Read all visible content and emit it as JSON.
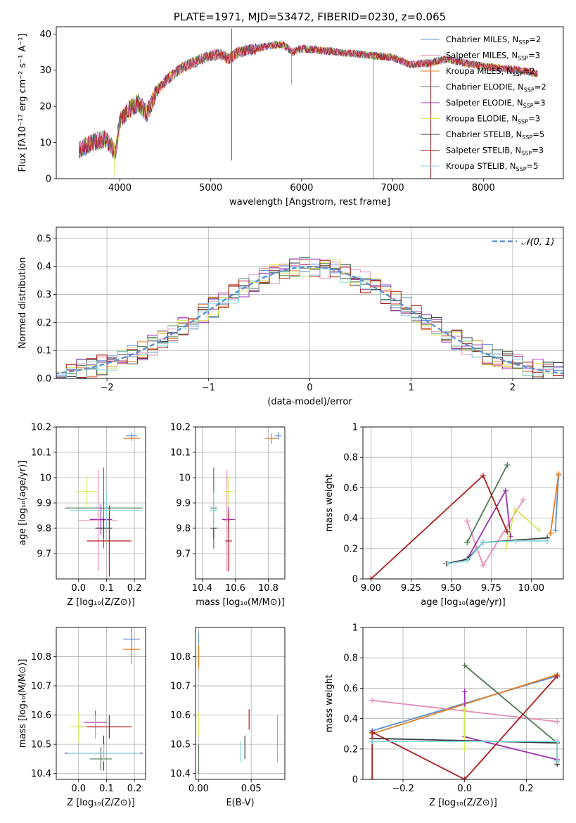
{
  "chart_data": [
    {
      "id": "spectrum",
      "type": "line",
      "title": "PLATE=1971, MJD=53472, FIBERID=0230, z=0.065",
      "xlabel": "wavelength [Angstrom, rest frame]",
      "ylabel": "Flux [fλ10⁻¹⁷ erg cm⁻² s⁻¹ A⁻¹]",
      "xlim": [
        3300,
        8880
      ],
      "ylim": [
        0,
        42
      ],
      "xticks": [
        4000,
        5000,
        6000,
        7000,
        8000
      ],
      "yticks": [
        0,
        10,
        20,
        30,
        40
      ],
      "grid": false,
      "legend_position": "top-right",
      "legend": [
        {
          "label": "Chabrier MILES, N",
          "sub": "SSP",
          "tail": "=2",
          "color": "#5b8fd6"
        },
        {
          "label": "Salpeter MILES, N",
          "sub": "SSP",
          "tail": "=3",
          "color": "#e88bb8"
        },
        {
          "label": "Kroupa MILES, N",
          "sub": "SSP",
          "tail": "=2",
          "color": "#e87d1e"
        },
        {
          "label": "Chabrier ELODIE, N",
          "sub": "SSP",
          "tail": "=2",
          "color": "#4f7a50"
        },
        {
          "label": "Salpeter ELODIE, N",
          "sub": "SSP",
          "tail": "=3",
          "color": "#9a32b0"
        },
        {
          "label": "Kroupa ELODIE, N",
          "sub": "SSP",
          "tail": "=3",
          "color": "#d8e85a"
        },
        {
          "label": "Chabrier STELIB, N",
          "sub": "SSP",
          "tail": "=5",
          "color": "#3a3a3a"
        },
        {
          "label": "Salpeter STELIB, N",
          "sub": "SSP",
          "tail": "=3",
          "color": "#b01c1c"
        },
        {
          "label": "Kroupa STELIB, N",
          "sub": "SSP",
          "tail": "=5",
          "color": "#7fd6de"
        }
      ],
      "continuum": [
        [
          3550,
          8
        ],
        [
          3700,
          10
        ],
        [
          3850,
          11
        ],
        [
          3950,
          7
        ],
        [
          4000,
          16
        ],
        [
          4100,
          19
        ],
        [
          4200,
          21
        ],
        [
          4300,
          18
        ],
        [
          4400,
          24
        ],
        [
          4500,
          27
        ],
        [
          4600,
          29
        ],
        [
          4700,
          31
        ],
        [
          4800,
          32
        ],
        [
          4900,
          33
        ],
        [
          5000,
          34
        ],
        [
          5100,
          34.5
        ],
        [
          5200,
          33
        ],
        [
          5300,
          35
        ],
        [
          5400,
          35.5
        ],
        [
          5500,
          36
        ],
        [
          5600,
          36.5
        ],
        [
          5700,
          37
        ],
        [
          5800,
          37
        ],
        [
          5900,
          35
        ],
        [
          6000,
          36
        ],
        [
          6200,
          35.5
        ],
        [
          6400,
          35
        ],
        [
          6600,
          34.5
        ],
        [
          6800,
          34
        ],
        [
          7000,
          33.5
        ],
        [
          7200,
          31.5
        ],
        [
          7400,
          32
        ],
        [
          7600,
          33
        ],
        [
          7800,
          32
        ],
        [
          8000,
          31
        ],
        [
          8200,
          30.5
        ],
        [
          8400,
          30
        ],
        [
          8600,
          29
        ]
      ],
      "spikes": [
        {
          "x": 5230,
          "low": 5.0,
          "high": 41.5,
          "color": "#555555"
        },
        {
          "x": 5890,
          "low": 26.0,
          "high": 35.0,
          "color": "#e87d1e"
        },
        {
          "x": 6790,
          "low": 0.0,
          "high": 34.0,
          "color": "#e87d1e"
        },
        {
          "x": 7420,
          "low": 0.0,
          "high": 32.0,
          "color": "#b01c1c"
        },
        {
          "x": 3940,
          "low": 1.0,
          "high": 10.0,
          "color": "#d8e85a"
        }
      ]
    },
    {
      "id": "residuals",
      "type": "histogram",
      "xlabel": "(data-model)/error",
      "ylabel": "Normed distribution",
      "xlim": [
        -2.5,
        2.5
      ],
      "ylim": [
        0,
        0.54
      ],
      "xticks": [
        -2,
        -1,
        0,
        1,
        2
      ],
      "yticks": [
        0.0,
        0.1,
        0.2,
        0.3,
        0.4,
        0.5
      ],
      "grid": true,
      "legend_position": "top-right",
      "legend_label": "𝒩(0, 1)",
      "bin_width": 0.1,
      "reference_curve": {
        "mean": 0,
        "sigma": 1,
        "color": "#5b8fd6"
      }
    },
    {
      "id": "age-vs-Z",
      "type": "errorbar",
      "xlabel": "Z [log₁₀(Z/Z⊙)]",
      "ylabel": "age  [log₁₀(age/yr)]",
      "xlim": [
        -0.08,
        0.24
      ],
      "ylim": [
        9.6,
        10.2
      ],
      "xticks": [
        0.0,
        0.1,
        0.2
      ],
      "xtick_labels": [
        "0.0",
        "0.1",
        "0.2"
      ],
      "yticks": [
        9.7,
        9.8,
        9.9,
        10.0,
        10.1,
        10.2
      ],
      "grid": true,
      "points": [
        {
          "x": 0.19,
          "y": 10.165,
          "xerr": 0.02,
          "yerr": 0.01,
          "color": "#5b8fd6"
        },
        {
          "x": 0.19,
          "y": 10.155,
          "xerr": 0.03,
          "yerr": 0.01,
          "color": "#e87d1e"
        },
        {
          "x": 0.09,
          "y": 9.88,
          "xerr": 0.14,
          "yerr": 0.16,
          "color": "#4f7a50"
        },
        {
          "x": 0.08,
          "y": 9.835,
          "xerr": 0.04,
          "yerr": 0.06,
          "color": "#9a32b0"
        },
        {
          "x": 0.07,
          "y": 9.83,
          "xerr": 0.07,
          "yerr": 0.2,
          "color": "#e88bb8"
        },
        {
          "x": 0.03,
          "y": 9.945,
          "xerr": 0.04,
          "yerr": 0.06,
          "color": "#d8e85a"
        },
        {
          "x": 0.09,
          "y": 9.8,
          "xerr": 0.03,
          "yerr": 0.04,
          "color": "#3a3a3a"
        },
        {
          "x": 0.11,
          "y": 9.75,
          "xerr": 0.08,
          "yerr": 0.14,
          "color": "#b01c1c"
        },
        {
          "x": 0.1,
          "y": 9.87,
          "xerr": 0.13,
          "yerr": 0.07,
          "color": "#7fd6de"
        }
      ]
    },
    {
      "id": "age-vs-mass",
      "type": "errorbar",
      "xlabel": "mass [log₁₀(M/M⊙)]",
      "ylabel": "",
      "xlim": [
        10.36,
        10.9
      ],
      "ylim": [
        9.6,
        10.2
      ],
      "xticks": [
        10.4,
        10.6,
        10.8
      ],
      "xtick_labels": [
        "10.4",
        "10.6",
        "10.8"
      ],
      "yticks": [
        9.7,
        9.8,
        9.9,
        10.0,
        10.1,
        10.2
      ],
      "grid": true,
      "points": [
        {
          "x": 10.86,
          "y": 10.165,
          "xerr": 0.02,
          "yerr": 0.015,
          "color": "#5b8fd6"
        },
        {
          "x": 10.82,
          "y": 10.155,
          "xerr": 0.04,
          "yerr": 0.02,
          "color": "#e87d1e"
        },
        {
          "x": 10.47,
          "y": 9.88,
          "xerr": 0.02,
          "yerr": 0.16,
          "color": "#4f7a50"
        },
        {
          "x": 10.56,
          "y": 9.835,
          "xerr": 0.04,
          "yerr": 0.05,
          "color": "#9a32b0"
        },
        {
          "x": 10.55,
          "y": 9.83,
          "xerr": 0.02,
          "yerr": 0.2,
          "color": "#e88bb8"
        },
        {
          "x": 10.56,
          "y": 9.945,
          "xerr": 0.03,
          "yerr": 0.06,
          "color": "#d8e85a"
        },
        {
          "x": 10.47,
          "y": 9.8,
          "xerr": 0.02,
          "yerr": 0.04,
          "color": "#3a3a3a"
        },
        {
          "x": 10.56,
          "y": 9.75,
          "xerr": 0.02,
          "yerr": 0.12,
          "color": "#b01c1c"
        },
        {
          "x": 10.47,
          "y": 9.87,
          "xerr": 0.02,
          "yerr": 0.07,
          "color": "#7fd6de"
        }
      ]
    },
    {
      "id": "weight-vs-age",
      "type": "line",
      "xlabel": "age  [log₁₀(age/yr)]",
      "ylabel": "mass weight",
      "xlim": [
        8.95,
        10.2
      ],
      "ylim": [
        0,
        1
      ],
      "xticks": [
        9.0,
        9.25,
        9.5,
        9.75,
        10.0
      ],
      "xtick_labels": [
        "9.00",
        "9.25",
        "9.50",
        "9.75",
        "10.00"
      ],
      "yticks": [
        0.0,
        0.2,
        0.4,
        0.6,
        0.8,
        1.0
      ],
      "grid": true,
      "series": [
        {
          "color": "#5b8fd6",
          "points": [
            [
              10.15,
              0.32
            ],
            [
              10.17,
              0.68
            ]
          ]
        },
        {
          "color": "#e88bb8",
          "points": [
            [
              9.6,
              0.38
            ],
            [
              9.7,
              0.09
            ],
            [
              9.95,
              0.52
            ]
          ]
        },
        {
          "color": "#e87d1e",
          "points": [
            [
              10.12,
              0.3
            ],
            [
              10.17,
              0.69
            ]
          ]
        },
        {
          "color": "#4f7a50",
          "points": [
            [
              9.6,
              0.24
            ],
            [
              9.85,
              0.75
            ]
          ]
        },
        {
          "color": "#9a32b0",
          "points": [
            [
              9.6,
              0.13
            ],
            [
              9.84,
              0.58
            ],
            [
              9.87,
              0.28
            ]
          ]
        },
        {
          "color": "#d8e85a",
          "points": [
            [
              9.84,
              0.2
            ],
            [
              9.9,
              0.46
            ],
            [
              10.05,
              0.32
            ]
          ]
        },
        {
          "color": "#3a3a3a",
          "points": [
            [
              9.47,
              0.1
            ],
            [
              9.6,
              0.13
            ],
            [
              9.7,
              0.24
            ],
            [
              10.1,
              0.27
            ]
          ]
        },
        {
          "color": "#b01c1c",
          "points": [
            [
              9.0,
              0.0
            ],
            [
              9.7,
              0.68
            ],
            [
              9.85,
              0.31
            ]
          ]
        },
        {
          "color": "#7fd6de",
          "points": [
            [
              9.48,
              0.1
            ],
            [
              9.6,
              0.12
            ],
            [
              9.7,
              0.24
            ],
            [
              9.9,
              0.25
            ],
            [
              10.1,
              0.25
            ]
          ]
        }
      ]
    },
    {
      "id": "mass-vs-Z",
      "type": "errorbar",
      "xlabel": "Z [log₁₀(Z/Z⊙)]",
      "ylabel": "mass [log₁₀(M/M⊙)]",
      "xlim": [
        -0.08,
        0.24
      ],
      "ylim": [
        10.38,
        10.9
      ],
      "xticks": [
        0.0,
        0.1,
        0.2
      ],
      "xtick_labels": [
        "0.0",
        "0.1",
        "0.2"
      ],
      "yticks": [
        10.4,
        10.5,
        10.6,
        10.7,
        10.8
      ],
      "grid": true,
      "points": [
        {
          "x": 0.19,
          "y": 10.86,
          "xerr": 0.03,
          "yerr": 0.04,
          "color": "#5b8fd6"
        },
        {
          "x": 0.19,
          "y": 10.825,
          "xerr": 0.03,
          "yerr": 0.05,
          "color": "#e87d1e"
        },
        {
          "x": 0.08,
          "y": 10.45,
          "xerr": 0.04,
          "yerr": 0.04,
          "color": "#4f7a50"
        },
        {
          "x": 0.06,
          "y": 10.575,
          "xerr": 0.04,
          "yerr": 0.04,
          "color": "#9a32b0"
        },
        {
          "x": 0.06,
          "y": 10.56,
          "xerr": 0.07,
          "yerr": 0.04,
          "color": "#e88bb8"
        },
        {
          "x": 0.0,
          "y": 10.56,
          "xerr": 0.03,
          "yerr": 0.05,
          "color": "#d8e85a"
        },
        {
          "x": 0.09,
          "y": 10.47,
          "xerr": 0.14,
          "yerr": 0.06,
          "color": "#3a3a3a"
        },
        {
          "x": 0.11,
          "y": 10.56,
          "xerr": 0.08,
          "yerr": 0.04,
          "color": "#b01c1c"
        },
        {
          "x": 0.09,
          "y": 10.47,
          "xerr": 0.13,
          "yerr": 0.03,
          "color": "#7fd6de"
        }
      ]
    },
    {
      "id": "mass-vs-EBV",
      "type": "errorbar",
      "xlabel": "E(B-V)",
      "ylabel": "",
      "xlim": [
        -0.003,
        0.082
      ],
      "ylim": [
        10.38,
        10.9
      ],
      "xticks": [
        0.0,
        0.05
      ],
      "xtick_labels": [
        "0.00",
        "0.05"
      ],
      "yticks": [
        10.4,
        10.5,
        10.6,
        10.7,
        10.8
      ],
      "grid": true,
      "points": [
        {
          "x": 0.0,
          "y": 10.83,
          "xerr": 0.0,
          "yerr": 0.05,
          "color": "#5b8fd6"
        },
        {
          "x": 0.0,
          "y": 10.8,
          "xerr": 0.0,
          "yerr": 0.04,
          "color": "#e87d1e"
        },
        {
          "x": 0.0,
          "y": 10.45,
          "xerr": 0.0,
          "yerr": 0.05,
          "color": "#4f7a50"
        },
        {
          "x": 0.0,
          "y": 10.57,
          "xerr": 0.0,
          "yerr": 0.04,
          "color": "#d8e85a"
        },
        {
          "x": 0.044,
          "y": 10.49,
          "xerr": 0.0,
          "yerr": 0.04,
          "color": "#3a3a3a"
        },
        {
          "x": 0.048,
          "y": 10.585,
          "xerr": 0.0,
          "yerr": 0.035,
          "color": "#b01c1c"
        },
        {
          "x": 0.04,
          "y": 10.475,
          "xerr": 0.0,
          "yerr": 0.035,
          "color": "#7fd6de"
        },
        {
          "x": 0.075,
          "y": 10.52,
          "xerr": 0.0,
          "yerr": 0.08,
          "color": "#e88bb8"
        }
      ]
    },
    {
      "id": "weight-vs-Z",
      "type": "line",
      "xlabel": "Z [log₁₀(Z/Z⊙)]",
      "ylabel": "mass weight",
      "xlim": [
        -0.33,
        0.32
      ],
      "ylim": [
        0,
        1
      ],
      "xticks": [
        -0.2,
        0.0,
        0.2
      ],
      "xtick_labels": [
        "−0.2",
        "0.0",
        "0.2"
      ],
      "yticks": [
        0.0,
        0.2,
        0.4,
        0.6,
        0.8,
        1.0
      ],
      "grid": true,
      "series": [
        {
          "color": "#5b8fd6",
          "points": [
            [
              -0.3,
              0.32
            ],
            [
              0.3,
              0.68
            ]
          ]
        },
        {
          "color": "#e88bb8",
          "points": [
            [
              -0.3,
              0.52
            ],
            [
              0.3,
              0.38
            ]
          ]
        },
        {
          "color": "#e87d1e",
          "points": [
            [
              -0.3,
              0.3
            ],
            [
              0.3,
              0.69
            ]
          ]
        },
        {
          "color": "#4f7a50",
          "points": [
            [
              0.0,
              0.75
            ],
            [
              0.3,
              0.24
            ]
          ]
        },
        {
          "color": "#9a32b0",
          "points": [
            [
              0.0,
              0.58
            ],
            [
              0.0,
              0.28
            ],
            [
              0.3,
              0.13
            ]
          ]
        },
        {
          "color": "#d8e85a",
          "points": [
            [
              0.0,
              0.46
            ],
            [
              0.0,
              0.2
            ]
          ]
        },
        {
          "color": "#3a3a3a",
          "points": [
            [
              -0.3,
              0.27
            ],
            [
              0.3,
              0.24
            ],
            [
              0.3,
              0.1
            ]
          ]
        },
        {
          "color": "#b01c1c",
          "points": [
            [
              -0.3,
              0.0
            ],
            [
              -0.3,
              0.31
            ],
            [
              0.0,
              0.0
            ],
            [
              0.3,
              0.68
            ]
          ]
        },
        {
          "color": "#7fd6de",
          "points": [
            [
              -0.3,
              0.25
            ],
            [
              0.3,
              0.25
            ],
            [
              0.3,
              0.12
            ]
          ]
        }
      ]
    }
  ]
}
